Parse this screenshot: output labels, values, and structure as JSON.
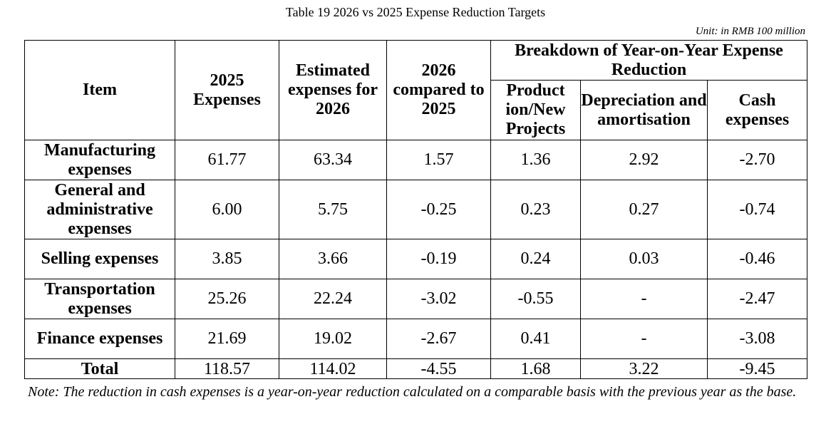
{
  "title": "Table 19 2026 vs 2025 Expense Reduction Targets",
  "unit": "Unit: in RMB 100 million",
  "headers": {
    "item": "Item",
    "expenses_2025": "2025 Expenses",
    "estimated_2026": "Estimated expenses for 2026",
    "compared": "2026 compared to 2025",
    "breakdown": "Breakdown of Year-on-Year Expense Reduction",
    "production": "Product ion/New Projects",
    "depreciation": "Depreciation and amortisation",
    "cash": "Cash expenses"
  },
  "rows": [
    {
      "item": "Manufacturing expenses",
      "e2025": "61.77",
      "e2026": "63.34",
      "diff": "1.57",
      "prod": "1.36",
      "dep": "2.92",
      "cash": "-2.70"
    },
    {
      "item": "General and administrative expenses",
      "e2025": "6.00",
      "e2026": "5.75",
      "diff": "-0.25",
      "prod": "0.23",
      "dep": "0.27",
      "cash": "-0.74"
    },
    {
      "item": "Selling expenses",
      "e2025": "3.85",
      "e2026": "3.66",
      "diff": "-0.19",
      "prod": "0.24",
      "dep": "0.03",
      "cash": "-0.46"
    },
    {
      "item": "Transportation expenses",
      "e2025": "25.26",
      "e2026": "22.24",
      "diff": "-3.02",
      "prod": "-0.55",
      "dep": "-",
      "cash": "-2.47"
    },
    {
      "item": "Finance expenses",
      "e2025": "21.69",
      "e2026": "19.02",
      "diff": "-2.67",
      "prod": "0.41",
      "dep": "-",
      "cash": "-3.08"
    },
    {
      "item": "Total",
      "e2025": "118.57",
      "e2026": "114.02",
      "diff": "-4.55",
      "prod": "1.68",
      "dep": "3.22",
      "cash": "-9.45"
    }
  ],
  "note": "Note: The reduction in cash expenses is a year-on-year reduction calculated on a comparable basis with the previous year as the base."
}
